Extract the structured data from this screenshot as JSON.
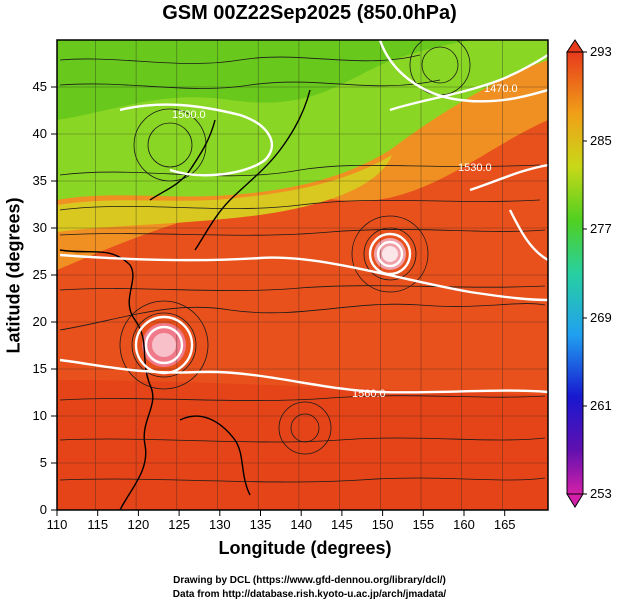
{
  "title": "GSM 00Z22Sep2025 (850.0hPa)",
  "x_axis": {
    "label": "Longitude (degrees)",
    "ticks": [
      "110",
      "115",
      "120",
      "125",
      "130",
      "135",
      "140",
      "145",
      "150",
      "155",
      "160",
      "165"
    ]
  },
  "y_axis": {
    "label": "Latitude (degrees)",
    "ticks": [
      "0",
      "5",
      "10",
      "15",
      "20",
      "25",
      "30",
      "35",
      "40",
      "45"
    ]
  },
  "colorbar": {
    "ticks": [
      "253",
      "261",
      "269",
      "277",
      "285",
      "293"
    ]
  },
  "contour_labels": [
    "1560.0",
    "1500.0",
    "1530.0",
    "1470.0"
  ],
  "credits": {
    "line1": "Drawing by DCL (https://www.gfd-dennou.org/library/dcl/)",
    "line2": "Data from http://database.rish.kyoto-u.ac.jp/arch/jmadata/"
  },
  "colors": {
    "warm": "#e8421c",
    "mid": "#f08020",
    "cool": "#7fd224",
    "contour": "#ffffff"
  }
}
